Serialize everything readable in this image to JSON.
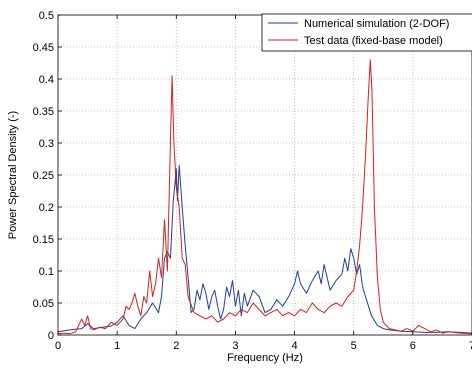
{
  "chart_data": {
    "type": "line",
    "xlabel": "Frequency (Hz)",
    "ylabel": "Power Spectral Density (-)",
    "xlim": [
      0,
      7
    ],
    "ylim": [
      0,
      0.5
    ],
    "x_ticks": [
      "0",
      "1",
      "2",
      "3",
      "4",
      "5",
      "6",
      "7"
    ],
    "y_ticks": [
      "0",
      "0.05",
      "0.1",
      "0.15",
      "0.2",
      "0.25",
      "0.3",
      "0.35",
      "0.4",
      "0.45",
      "0.5"
    ],
    "grid": true,
    "legend_position": "top-right",
    "series": [
      {
        "name": "Numerical simulation (2-DOF)",
        "color": "#1f3f99",
        "points": [
          [
            0.0,
            0.005
          ],
          [
            0.2,
            0.008
          ],
          [
            0.4,
            0.01
          ],
          [
            0.5,
            0.018
          ],
          [
            0.6,
            0.01
          ],
          [
            0.75,
            0.012
          ],
          [
            0.9,
            0.014
          ],
          [
            1.0,
            0.02
          ],
          [
            1.1,
            0.03
          ],
          [
            1.2,
            0.015
          ],
          [
            1.3,
            0.01
          ],
          [
            1.4,
            0.025
          ],
          [
            1.5,
            0.035
          ],
          [
            1.6,
            0.05
          ],
          [
            1.7,
            0.035
          ],
          [
            1.75,
            0.06
          ],
          [
            1.8,
            0.12
          ],
          [
            1.85,
            0.13
          ],
          [
            1.9,
            0.12
          ],
          [
            1.95,
            0.21
          ],
          [
            2.0,
            0.26
          ],
          [
            2.02,
            0.21
          ],
          [
            2.05,
            0.265
          ],
          [
            2.1,
            0.2
          ],
          [
            2.15,
            0.14
          ],
          [
            2.2,
            0.09
          ],
          [
            2.25,
            0.035
          ],
          [
            2.3,
            0.04
          ],
          [
            2.35,
            0.07
          ],
          [
            2.4,
            0.055
          ],
          [
            2.45,
            0.08
          ],
          [
            2.5,
            0.065
          ],
          [
            2.55,
            0.04
          ],
          [
            2.6,
            0.06
          ],
          [
            2.65,
            0.07
          ],
          [
            2.7,
            0.045
          ],
          [
            2.75,
            0.025
          ],
          [
            2.8,
            0.04
          ],
          [
            2.85,
            0.075
          ],
          [
            2.9,
            0.06
          ],
          [
            2.95,
            0.085
          ],
          [
            3.0,
            0.045
          ],
          [
            3.05,
            0.07
          ],
          [
            3.1,
            0.03
          ],
          [
            3.15,
            0.065
          ],
          [
            3.2,
            0.045
          ],
          [
            3.3,
            0.07
          ],
          [
            3.4,
            0.06
          ],
          [
            3.5,
            0.035
          ],
          [
            3.6,
            0.04
          ],
          [
            3.7,
            0.055
          ],
          [
            3.8,
            0.045
          ],
          [
            3.9,
            0.06
          ],
          [
            4.0,
            0.08
          ],
          [
            4.05,
            0.1
          ],
          [
            4.1,
            0.08
          ],
          [
            4.2,
            0.065
          ],
          [
            4.3,
            0.085
          ],
          [
            4.4,
            0.1
          ],
          [
            4.45,
            0.08
          ],
          [
            4.5,
            0.11
          ],
          [
            4.55,
            0.09
          ],
          [
            4.6,
            0.07
          ],
          [
            4.7,
            0.085
          ],
          [
            4.8,
            0.095
          ],
          [
            4.85,
            0.12
          ],
          [
            4.9,
            0.1
          ],
          [
            4.95,
            0.135
          ],
          [
            5.0,
            0.12
          ],
          [
            5.05,
            0.095
          ],
          [
            5.1,
            0.11
          ],
          [
            5.15,
            0.075
          ],
          [
            5.2,
            0.06
          ],
          [
            5.25,
            0.045
          ],
          [
            5.3,
            0.03
          ],
          [
            5.4,
            0.015
          ],
          [
            5.5,
            0.01
          ],
          [
            5.6,
            0.008
          ],
          [
            5.8,
            0.006
          ],
          [
            6.0,
            0.005
          ],
          [
            6.2,
            0.004
          ],
          [
            6.4,
            0.004
          ],
          [
            6.6,
            0.005
          ],
          [
            6.8,
            0.004
          ],
          [
            7.0,
            0.003
          ]
        ]
      },
      {
        "name": "Test data (fixed-base model)",
        "color": "#d62020",
        "points": [
          [
            0.0,
            0.002
          ],
          [
            0.1,
            0.003
          ],
          [
            0.2,
            0.002
          ],
          [
            0.3,
            0.005
          ],
          [
            0.4,
            0.025
          ],
          [
            0.45,
            0.015
          ],
          [
            0.5,
            0.03
          ],
          [
            0.55,
            0.01
          ],
          [
            0.6,
            0.008
          ],
          [
            0.7,
            0.012
          ],
          [
            0.8,
            0.01
          ],
          [
            0.9,
            0.02
          ],
          [
            1.0,
            0.015
          ],
          [
            1.1,
            0.025
          ],
          [
            1.15,
            0.045
          ],
          [
            1.2,
            0.04
          ],
          [
            1.25,
            0.05
          ],
          [
            1.3,
            0.065
          ],
          [
            1.35,
            0.045
          ],
          [
            1.4,
            0.03
          ],
          [
            1.45,
            0.06
          ],
          [
            1.5,
            0.05
          ],
          [
            1.55,
            0.1
          ],
          [
            1.6,
            0.06
          ],
          [
            1.65,
            0.08
          ],
          [
            1.7,
            0.12
          ],
          [
            1.75,
            0.09
          ],
          [
            1.8,
            0.18
          ],
          [
            1.85,
            0.1
          ],
          [
            1.9,
            0.3
          ],
          [
            1.93,
            0.405
          ],
          [
            1.96,
            0.3
          ],
          [
            2.0,
            0.23
          ],
          [
            2.05,
            0.2
          ],
          [
            2.1,
            0.12
          ],
          [
            2.15,
            0.11
          ],
          [
            2.2,
            0.06
          ],
          [
            2.3,
            0.035
          ],
          [
            2.4,
            0.03
          ],
          [
            2.5,
            0.025
          ],
          [
            2.6,
            0.03
          ],
          [
            2.7,
            0.02
          ],
          [
            2.8,
            0.025
          ],
          [
            2.9,
            0.035
          ],
          [
            3.0,
            0.03
          ],
          [
            3.1,
            0.04
          ],
          [
            3.2,
            0.035
          ],
          [
            3.3,
            0.05
          ],
          [
            3.4,
            0.04
          ],
          [
            3.5,
            0.03
          ],
          [
            3.6,
            0.035
          ],
          [
            3.7,
            0.04
          ],
          [
            3.8,
            0.03
          ],
          [
            3.9,
            0.035
          ],
          [
            4.0,
            0.03
          ],
          [
            4.1,
            0.04
          ],
          [
            4.2,
            0.035
          ],
          [
            4.3,
            0.05
          ],
          [
            4.4,
            0.04
          ],
          [
            4.5,
            0.035
          ],
          [
            4.6,
            0.045
          ],
          [
            4.7,
            0.05
          ],
          [
            4.8,
            0.045
          ],
          [
            4.9,
            0.06
          ],
          [
            5.0,
            0.07
          ],
          [
            5.05,
            0.1
          ],
          [
            5.1,
            0.14
          ],
          [
            5.15,
            0.2
          ],
          [
            5.2,
            0.28
          ],
          [
            5.25,
            0.38
          ],
          [
            5.28,
            0.43
          ],
          [
            5.31,
            0.38
          ],
          [
            5.35,
            0.2
          ],
          [
            5.4,
            0.09
          ],
          [
            5.45,
            0.04
          ],
          [
            5.5,
            0.02
          ],
          [
            5.6,
            0.01
          ],
          [
            5.7,
            0.008
          ],
          [
            5.8,
            0.006
          ],
          [
            5.9,
            0.01
          ],
          [
            6.0,
            0.006
          ],
          [
            6.1,
            0.015
          ],
          [
            6.2,
            0.01
          ],
          [
            6.3,
            0.005
          ],
          [
            6.4,
            0.008
          ],
          [
            6.5,
            0.003
          ],
          [
            6.6,
            0.005
          ],
          [
            6.8,
            0.003
          ],
          [
            7.0,
            0.002
          ]
        ]
      }
    ]
  }
}
